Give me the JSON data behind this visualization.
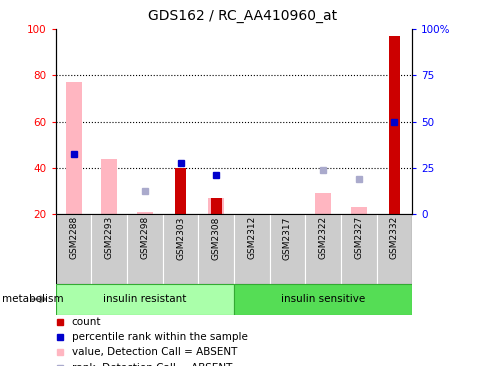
{
  "title": "GDS162 / RC_AA410960_at",
  "samples": [
    "GSM2288",
    "GSM2293",
    "GSM2298",
    "GSM2303",
    "GSM2308",
    "GSM2312",
    "GSM2317",
    "GSM2322",
    "GSM2327",
    "GSM2332"
  ],
  "ylim_left": [
    20,
    100
  ],
  "yticks_left": [
    20,
    40,
    60,
    80,
    100
  ],
  "yticks_right_vals": [
    0,
    0.25,
    0.5,
    0.75,
    1.0
  ],
  "yticks_right_labels": [
    "0",
    "25",
    "50",
    "75",
    "100%"
  ],
  "pink_bars": [
    77,
    44,
    21,
    null,
    27,
    null,
    null,
    29,
    23,
    null
  ],
  "red_bars": [
    null,
    null,
    null,
    40,
    27,
    null,
    null,
    null,
    null,
    97
  ],
  "blue_squares": [
    46,
    null,
    null,
    42,
    37,
    null,
    null,
    null,
    null,
    60
  ],
  "lavender_squares": [
    null,
    null,
    30,
    null,
    null,
    null,
    null,
    39,
    35,
    null
  ],
  "pink_bar_color": "#FFB6C1",
  "red_bar_color": "#CC0000",
  "blue_sq_color": "#0000CC",
  "lavender_sq_color": "#AAAACC",
  "bg_color_resistant": "#AAFFAA",
  "bg_color_sensitive": "#55DD55",
  "tick_bg_color": "#CCCCCC",
  "bar_width": 0.45,
  "red_bar_width": 0.3,
  "legend_items": [
    {
      "color": "#CC0000",
      "label": "count"
    },
    {
      "color": "#0000CC",
      "label": "percentile rank within the sample"
    },
    {
      "color": "#FFB6C1",
      "label": "value, Detection Call = ABSENT"
    },
    {
      "color": "#AAAACC",
      "label": "rank, Detection Call = ABSENT"
    }
  ]
}
